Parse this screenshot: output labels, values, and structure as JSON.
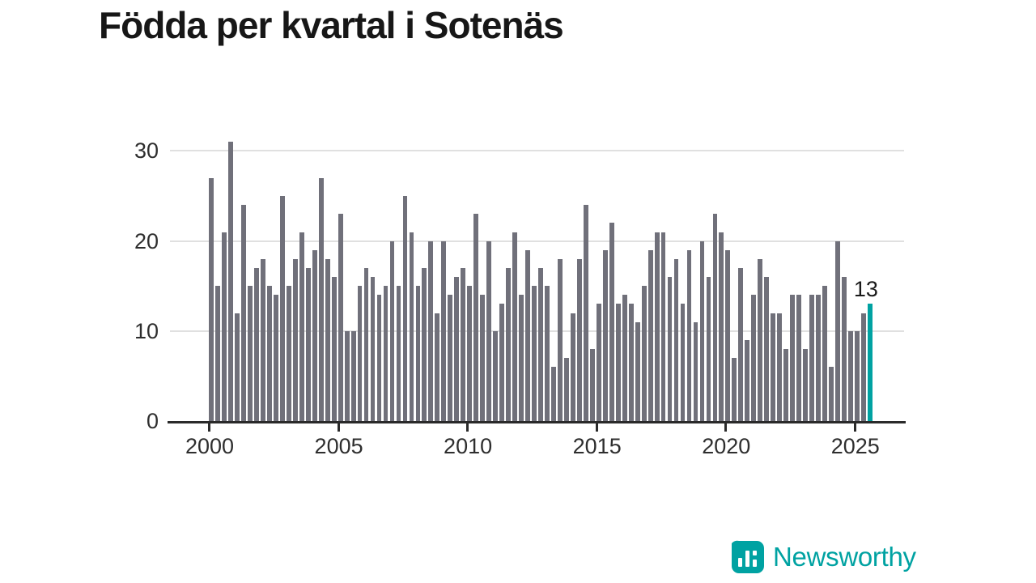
{
  "title": "Födda per kvartal i Sotenäs",
  "chart_data": {
    "type": "bar",
    "title": "Födda per kvartal i Sotenäs",
    "frequency": "quarterly",
    "x_start": "2000 Q1",
    "x_end": "2025 Q3",
    "values": [
      27,
      15,
      21,
      31,
      12,
      24,
      15,
      17,
      18,
      15,
      14,
      25,
      15,
      18,
      21,
      17,
      19,
      27,
      18,
      16,
      23,
      10,
      10,
      15,
      17,
      16,
      14,
      15,
      20,
      15,
      25,
      21,
      15,
      17,
      20,
      12,
      20,
      14,
      16,
      17,
      15,
      23,
      14,
      20,
      10,
      13,
      17,
      21,
      14,
      19,
      15,
      17,
      15,
      6,
      18,
      7,
      12,
      18,
      24,
      8,
      13,
      19,
      22,
      13,
      14,
      13,
      11,
      15,
      19,
      21,
      21,
      16,
      18,
      13,
      19,
      11,
      20,
      16,
      23,
      21,
      19,
      7,
      17,
      9,
      14,
      18,
      16,
      12,
      12,
      8,
      14,
      14,
      8,
      14,
      14,
      15,
      6,
      20,
      16,
      10,
      10,
      12,
      13
    ],
    "start_year": 2000,
    "highlight_index": 102,
    "highlight_quarter": "2025 Q3",
    "highlight_value": 13,
    "x_ticks": [
      "2000",
      "2005",
      "2010",
      "2015",
      "2020",
      "2025"
    ],
    "y_ticks": [
      0,
      10,
      20,
      30
    ],
    "ylim": [
      0,
      33
    ],
    "grid": "horizontal",
    "legend": "none",
    "colors": {
      "bar": "#70707a",
      "highlight": "#00a2a2",
      "grid": "#e0e0e0",
      "axis": "#2a2a2a",
      "tick_text": "#2e2e2e",
      "title_text": "#171717"
    }
  },
  "annotation": {
    "text": "13"
  },
  "footer": {
    "brand": "Newsworthy",
    "brand_color": "#00a2a2"
  }
}
